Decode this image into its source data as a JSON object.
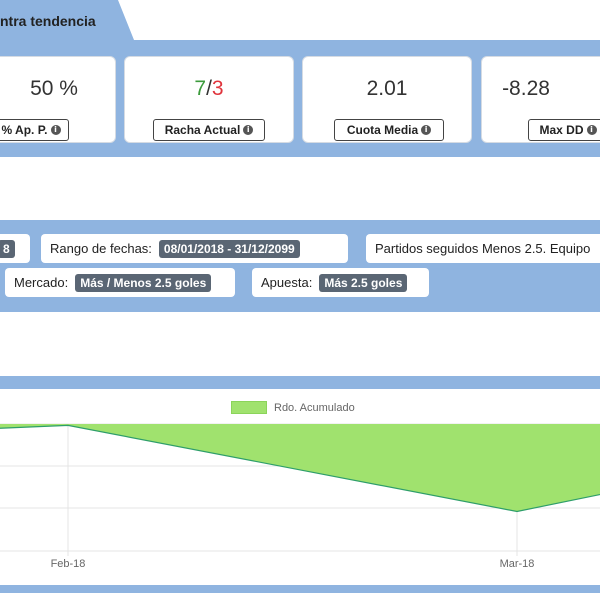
{
  "header": {
    "title": "ntra tendencia"
  },
  "stats": [
    {
      "value": "50 %",
      "label": "% Ap. P."
    },
    {
      "value_win": "7",
      "value_sep": "/",
      "value_loss": "3",
      "label": "Racha Actual"
    },
    {
      "value": "2.01",
      "label": "Cuota Media"
    },
    {
      "value": "-8.28",
      "label": "Max DD"
    }
  ],
  "filters": {
    "first_tag": "8",
    "date_range_label": "Rango de fechas:",
    "date_range_value": "08/01/2018 - 31/12/2099",
    "description": "Partidos seguidos Menos 2.5. Equipo",
    "market_label": "Mercado:",
    "market_value": "Más / Menos 2.5 goles",
    "bet_label": "Apuesta:",
    "bet_value": "Más 2.5 goles"
  },
  "colors": {
    "panel": "#8fb4e0",
    "area_fill": "#a0e26e",
    "area_line": "#2e9e6a",
    "positive": "#3c9b3c",
    "negative": "#e0343c"
  },
  "chart_data": {
    "type": "area",
    "series": [
      {
        "name": "Rdo. Acumulado",
        "points": [
          {
            "x": "start",
            "y": 0.85
          },
          {
            "x": "Feb-18",
            "y": 0.95
          },
          {
            "x": "Mar-18",
            "y": -2.1
          },
          {
            "x": "end",
            "y": -1.5
          }
        ]
      }
    ],
    "x_ticks": [
      "Feb-18",
      "Mar-18"
    ],
    "ylim": [
      -3.5,
      1.0
    ],
    "grid": true,
    "legend": "top-center"
  }
}
